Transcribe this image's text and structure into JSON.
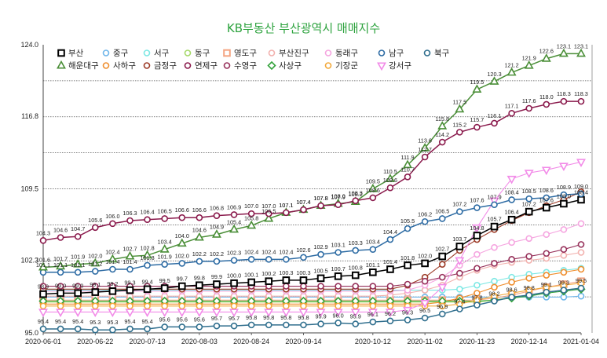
{
  "chart_data": {
    "type": "line",
    "title": "KB부동산 부산광역시 매매지수",
    "xlabel": "",
    "ylabel": "",
    "ylim": [
      95.0,
      124.0
    ],
    "y_ticks": [
      "124.0",
      "116.8",
      "109.5",
      "102.3",
      "95.0"
    ],
    "x_ticks": [
      "2020-06-01",
      "2020-06-22",
      "2020-07-13",
      "2020-08-03",
      "2020-08-24",
      "2020-09-14",
      "2020-10-12",
      "2020-11-02",
      "2020-11-23",
      "2020-12-14",
      "2021-01-04"
    ],
    "x_tick_weeks": [
      0,
      3,
      6,
      9,
      12,
      15,
      19,
      22,
      25,
      28,
      31
    ],
    "categories": [
      "2020-06-01",
      "2020-06-08",
      "2020-06-15",
      "2020-06-22",
      "2020-06-29",
      "2020-07-06",
      "2020-07-13",
      "2020-07-20",
      "2020-07-27",
      "2020-08-03",
      "2020-08-10",
      "2020-08-17",
      "2020-08-24",
      "2020-08-31",
      "2020-09-07",
      "2020-09-14",
      "2020-09-21",
      "2020-09-28",
      "2020-10-05",
      "2020-10-12",
      "2020-10-19",
      "2020-10-26",
      "2020-11-02",
      "2020-11-09",
      "2020-11-16",
      "2020-11-23",
      "2020-11-30",
      "2020-12-07",
      "2020-12-14",
      "2020-12-21",
      "2020-12-28",
      "2021-01-04"
    ],
    "series": [
      {
        "name": "부산",
        "color": "#000000",
        "marker": "square",
        "labeled": true,
        "values": [
          98.9,
          99.0,
          99.0,
          99.1,
          99.2,
          99.3,
          99.4,
          99.5,
          99.7,
          99.8,
          99.9,
          100.0,
          100.1,
          100.2,
          100.3,
          100.3,
          100.5,
          100.7,
          100.8,
          101.1,
          101.4,
          101.8,
          102.0,
          102.7,
          103.7,
          104.8,
          105.7,
          106.4,
          107.2,
          107.6,
          108.0,
          108.4
        ]
      },
      {
        "name": "중구",
        "color": "#6fb6ea",
        "marker": "circle",
        "labeled": false,
        "values": [
          98.6,
          98.6,
          98.6,
          98.6,
          98.6,
          98.6,
          98.6,
          98.6,
          98.6,
          98.6,
          98.6,
          98.6,
          98.6,
          98.6,
          98.6,
          98.6,
          98.6,
          98.6,
          98.6,
          98.6,
          98.6,
          98.6,
          98.6,
          98.6,
          98.6,
          98.6,
          98.6,
          98.6,
          98.6,
          98.6,
          98.6,
          98.7
        ]
      },
      {
        "name": "서구",
        "color": "#7de8e4",
        "marker": "circle",
        "labeled": false,
        "values": [
          99.3,
          99.3,
          99.3,
          99.3,
          99.3,
          99.3,
          99.3,
          99.3,
          99.3,
          99.3,
          99.3,
          99.3,
          99.3,
          99.3,
          99.3,
          99.3,
          99.3,
          99.3,
          99.3,
          99.3,
          99.3,
          99.3,
          99.3,
          99.3,
          99.4,
          99.8,
          100.2,
          100.6,
          100.9,
          101.1,
          101.3,
          101.5
        ]
      },
      {
        "name": "동구",
        "color": "#a6d96a",
        "marker": "circle",
        "labeled": false,
        "values": [
          98.1,
          98.1,
          98.1,
          98.1,
          98.1,
          98.1,
          98.1,
          98.1,
          98.1,
          98.1,
          98.1,
          98.1,
          98.1,
          98.1,
          98.1,
          98.1,
          98.1,
          98.1,
          98.1,
          98.1,
          98.1,
          98.1,
          98.1,
          98.1,
          98.1,
          98.1,
          98.3,
          98.6,
          98.8,
          99.1,
          99.3,
          99.5
        ]
      },
      {
        "name": "영도구",
        "color": "#f4a582",
        "marker": "square",
        "labeled": false,
        "values": [
          98.3,
          98.3,
          98.3,
          98.3,
          98.3,
          98.3,
          98.3,
          98.3,
          98.3,
          98.3,
          98.3,
          98.3,
          98.3,
          98.3,
          98.3,
          98.3,
          98.3,
          98.3,
          98.3,
          98.3,
          98.3,
          98.3,
          98.3,
          98.3,
          98.3,
          98.3,
          98.5,
          98.8,
          99.2,
          99.6,
          99.9,
          100.2
        ]
      },
      {
        "name": "부산진구",
        "color": "#f2b1ae",
        "marker": "circle",
        "labeled": false,
        "values": [
          98.7,
          98.7,
          98.7,
          98.7,
          98.7,
          98.7,
          98.7,
          98.7,
          98.7,
          98.7,
          98.7,
          98.7,
          98.7,
          98.7,
          98.7,
          98.7,
          98.7,
          98.7,
          98.7,
          98.7,
          98.8,
          99.0,
          99.3,
          99.8,
          100.6,
          101.3,
          101.8,
          102.1,
          102.3,
          102.5,
          102.8,
          103.1
        ]
      },
      {
        "name": "동래구",
        "color": "#f5a6e0",
        "marker": "circle",
        "labeled": false,
        "values": [
          99.2,
          99.2,
          99.2,
          99.2,
          99.2,
          99.2,
          99.2,
          99.2,
          99.2,
          99.2,
          99.2,
          99.2,
          99.2,
          99.2,
          99.2,
          99.2,
          99.2,
          99.2,
          99.2,
          99.2,
          99.2,
          99.3,
          99.8,
          100.6,
          101.8,
          102.9,
          103.6,
          104.1,
          104.5,
          104.9,
          105.4,
          106.0
        ]
      },
      {
        "name": "남구",
        "color": "#2e6ca4",
        "marker": "circle",
        "labeled": true,
        "values": [
          101.1,
          101.1,
          101.1,
          101.2,
          101.4,
          101.4,
          101.8,
          101.9,
          102.0,
          102.2,
          102.2,
          102.3,
          102.4,
          102.4,
          102.4,
          102.6,
          102.9,
          103.1,
          103.3,
          103.4,
          104.4,
          105.5,
          106.2,
          106.5,
          107.2,
          107.6,
          107.9,
          108.4,
          108.5,
          108.6,
          108.9,
          109.0
        ]
      },
      {
        "name": "북구",
        "color": "#306f8e",
        "marker": "circle",
        "labeled": true,
        "values": [
          95.4,
          95.4,
          95.4,
          95.3,
          95.3,
          95.4,
          95.4,
          95.6,
          95.6,
          95.6,
          95.7,
          95.7,
          95.8,
          95.8,
          95.8,
          95.8,
          95.9,
          96.0,
          95.9,
          96.1,
          96.2,
          96.3,
          96.5,
          96.9,
          97.4,
          97.8,
          98.2,
          98.6,
          98.8,
          99.1,
          99.3,
          99.5
        ]
      },
      {
        "name": "해운대구",
        "color": "#4a8e37",
        "marker": "triangle",
        "labeled": true,
        "values": [
          101.6,
          101.7,
          101.9,
          102.0,
          102.4,
          102.7,
          102.8,
          103.4,
          104.0,
          104.6,
          104.9,
          105.4,
          105.8,
          106.5,
          107.1,
          107.4,
          107.8,
          108.0,
          108.2,
          109.5,
          110.5,
          111.9,
          113.6,
          115.8,
          117.5,
          119.5,
          120.3,
          121.2,
          121.9,
          122.6,
          123.1,
          123.1
        ]
      },
      {
        "name": "사하구",
        "color": "#ef8e2e",
        "marker": "circle",
        "labeled": false,
        "values": [
          97.9,
          97.9,
          97.9,
          97.9,
          97.9,
          97.9,
          97.9,
          97.9,
          97.9,
          97.9,
          97.9,
          97.9,
          97.9,
          97.9,
          97.9,
          97.9,
          97.9,
          97.9,
          97.9,
          97.9,
          97.9,
          97.9,
          97.9,
          98.1,
          98.5,
          99.0,
          99.6,
          100.1,
          100.5,
          100.8,
          101.1,
          101.4
        ]
      },
      {
        "name": "금정구",
        "color": "#9c3a26",
        "marker": "circle",
        "labeled": false,
        "values": [
          99.4,
          99.4,
          99.4,
          99.4,
          99.4,
          99.4,
          99.4,
          99.4,
          99.4,
          99.4,
          99.4,
          99.4,
          99.4,
          99.4,
          99.4,
          99.4,
          99.4,
          99.4,
          99.4,
          99.4,
          99.4,
          99.8,
          100.6,
          101.9,
          103.3,
          104.4,
          105.4,
          106.3,
          107.1,
          107.8,
          108.4,
          109.2
        ]
      },
      {
        "name": "연제구",
        "color": "#8a1a4c",
        "marker": "circle",
        "labeled": true,
        "values": [
          104.3,
          104.6,
          104.7,
          105.6,
          106.0,
          106.3,
          106.4,
          106.5,
          106.6,
          106.6,
          106.8,
          106.9,
          107.0,
          107.0,
          107.1,
          107.4,
          107.8,
          107.9,
          108.3,
          108.6,
          109.6,
          110.7,
          112.7,
          114.2,
          115.2,
          115.7,
          116.1,
          117.1,
          117.6,
          118.0,
          118.3,
          118.3
        ]
      },
      {
        "name": "수영구",
        "color": "#96305a",
        "marker": "circle",
        "labeled": false,
        "values": [
          99.7,
          99.7,
          99.7,
          99.7,
          99.7,
          99.7,
          99.7,
          99.7,
          99.7,
          99.7,
          99.7,
          99.7,
          99.7,
          99.7,
          99.7,
          99.7,
          99.7,
          99.7,
          99.7,
          99.7,
          99.7,
          99.9,
          100.2,
          100.6,
          101.0,
          101.5,
          102.0,
          102.4,
          102.7,
          103.0,
          103.4,
          103.9
        ]
      },
      {
        "name": "사상구",
        "color": "#34a33c",
        "marker": "diamond",
        "labeled": false,
        "values": [
          98.2,
          98.2,
          98.2,
          98.2,
          98.2,
          98.2,
          98.2,
          98.2,
          98.2,
          98.2,
          98.2,
          98.2,
          98.2,
          98.2,
          98.2,
          98.2,
          98.2,
          98.2,
          98.2,
          98.2,
          98.2,
          98.2,
          98.2,
          98.2,
          98.2,
          98.2,
          98.3,
          98.5,
          98.7,
          99.0,
          99.2,
          99.4
        ]
      },
      {
        "name": "기장군",
        "color": "#f2a93b",
        "marker": "circle",
        "labeled": false,
        "values": [
          97.7,
          97.7,
          97.7,
          97.7,
          97.7,
          97.7,
          97.7,
          97.7,
          97.7,
          97.7,
          97.7,
          97.7,
          97.7,
          97.7,
          97.7,
          97.7,
          97.7,
          97.7,
          97.7,
          97.7,
          97.7,
          97.7,
          97.7,
          97.7,
          97.9,
          98.3,
          98.7,
          99.0,
          99.3,
          99.6,
          99.8,
          100.0
        ]
      },
      {
        "name": "강서구",
        "color": "#f28be8",
        "marker": "triangle-down",
        "labeled": false,
        "values": [
          97.1,
          97.1,
          97.1,
          97.1,
          97.1,
          97.1,
          97.1,
          97.1,
          97.1,
          97.1,
          97.1,
          97.1,
          97.1,
          97.1,
          97.1,
          97.1,
          97.1,
          97.1,
          97.1,
          97.1,
          97.1,
          97.3,
          98.0,
          99.6,
          102.3,
          105.6,
          108.3,
          110.5,
          111.1,
          111.4,
          111.8,
          112.2
        ]
      }
    ]
  }
}
